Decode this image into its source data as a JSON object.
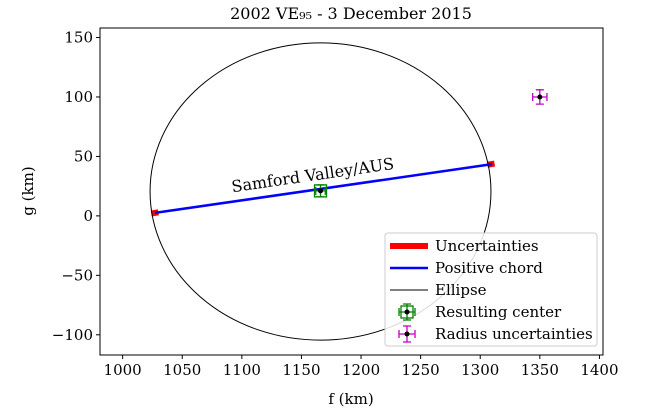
{
  "chart_data": {
    "type": "line",
    "title": "2002 VE₉₅ - 3 December 2015",
    "xlabel": "f (km)",
    "ylabel": "g (km)",
    "annotation": "Samford Valley/AUS",
    "xlim": [
      981,
      1403
    ],
    "ylim": [
      -117,
      158
    ],
    "xticks": [
      1000,
      1050,
      1100,
      1150,
      1200,
      1250,
      1300,
      1350,
      1400
    ],
    "yticks": [
      {
        "value": -100,
        "label": "−100"
      },
      {
        "value": -50,
        "label": "−50"
      },
      0,
      50,
      100,
      150
    ],
    "legend": "lower right",
    "series": [
      {
        "name": "Uncertainties",
        "kind": "line",
        "color": "#ff0000",
        "x": [
          1024,
          1030,
          null,
          1306,
          1312
        ],
        "y": [
          2,
          3,
          null,
          43,
          44
        ]
      },
      {
        "name": "Positive chord",
        "kind": "line",
        "color": "#0000ff",
        "x": [
          1027,
          1310
        ],
        "y": [
          2.5,
          43.5
        ]
      },
      {
        "name": "Ellipse",
        "kind": "ellipse",
        "color": "#000000",
        "cx": 1166,
        "cy": 20.5,
        "rx": 143,
        "ry": 125
      },
      {
        "name": "Resulting center",
        "kind": "errorbar",
        "color": "#008000",
        "x": [
          1166
        ],
        "y": [
          21
        ],
        "xerr": [
          4
        ],
        "yerr": [
          5
        ]
      },
      {
        "name": "Radius uncertainties",
        "kind": "errorbar",
        "color": "#bf00bf",
        "x": [
          1350
        ],
        "y": [
          100
        ],
        "xerr": [
          6
        ],
        "yerr": [
          6
        ]
      }
    ]
  }
}
